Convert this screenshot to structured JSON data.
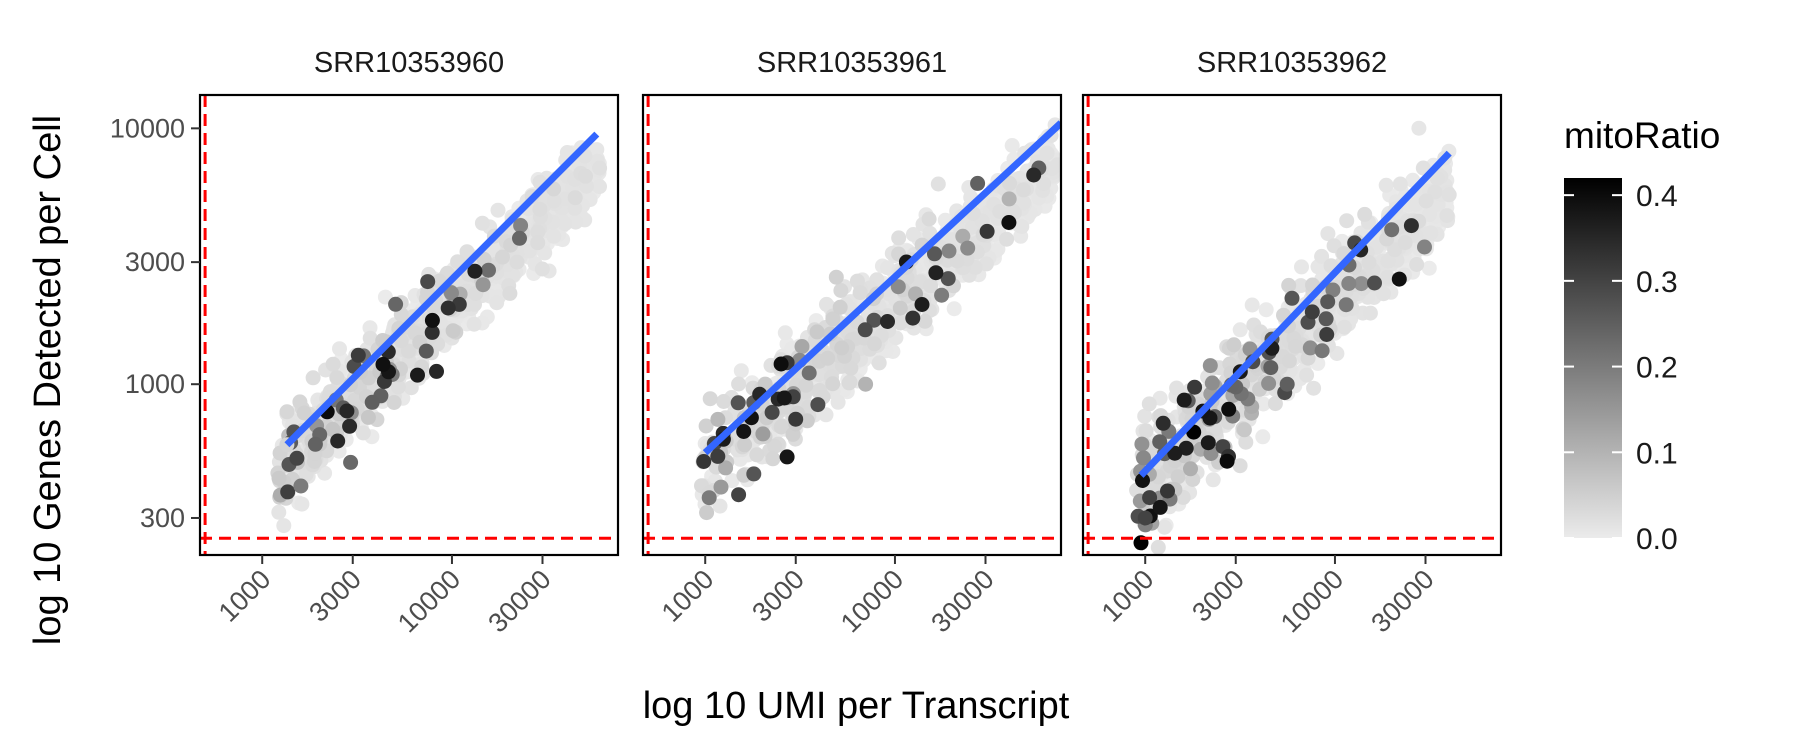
{
  "chart_data": {
    "type": "scatter",
    "facet_by": "sample",
    "xlabel": "log 10 UMI per Transcript",
    "ylabel": "log 10 Genes Detected per Cell",
    "x_scale": "log10",
    "y_scale": "log10",
    "xlim": [
      470,
      75000
    ],
    "ylim": [
      215,
      13500
    ],
    "x_ticks": [
      1000,
      3000,
      10000,
      30000
    ],
    "x_tick_labels": [
      "1000",
      "3000",
      "10000",
      "30000"
    ],
    "y_ticks": [
      300,
      1000,
      3000,
      10000
    ],
    "y_tick_labels": [
      "300",
      "1000",
      "3000",
      "10000"
    ],
    "threshold_lines": {
      "x": 500,
      "y": 250,
      "color": "#ff0000",
      "style": "dashed"
    },
    "trend_color": "#3366ff",
    "color_scale": {
      "title": "mitoRatio",
      "low_color": "#ebebeb",
      "high_color": "#000000",
      "range": [
        0,
        0.42
      ],
      "ticks": [
        0.0,
        0.1,
        0.2,
        0.3,
        0.4
      ],
      "tick_labels": [
        "0.0",
        "0.1",
        "0.2",
        "0.3",
        "0.4"
      ]
    },
    "panels": [
      {
        "title": "SRR10353960",
        "trend": {
          "x": [
            1350,
            58000
          ],
          "y": [
            580,
            9500
          ]
        },
        "cloud": {
          "umi_range": [
            1200,
            60000
          ],
          "center_start": 470,
          "center_end": 7000,
          "spread": 0.1,
          "dark_fraction": 0.12
        },
        "points": [
          {
            "x": 1300,
            "y": 280,
            "mito": 0.01
          },
          {
            "x": 1350,
            "y": 580,
            "mito": 0.04
          },
          {
            "x": 1600,
            "y": 400,
            "mito": 0.2
          },
          {
            "x": 2500,
            "y": 600,
            "mito": 0.35
          },
          {
            "x": 2200,
            "y": 780,
            "mito": 0.4
          },
          {
            "x": 3800,
            "y": 850,
            "mito": 0.25
          },
          {
            "x": 60000,
            "y": 7000,
            "mito": 0.02
          }
        ]
      },
      {
        "title": "SRR10353961",
        "trend": {
          "x": [
            1000,
            75000
          ],
          "y": [
            540,
            10500
          ]
        },
        "cloud": {
          "umi_range": [
            950,
            70000
          ],
          "center_start": 450,
          "center_end": 7300,
          "spread": 0.11,
          "dark_fraction": 0.1
        },
        "points": [
          {
            "x": 1050,
            "y": 360,
            "mito": 0.2
          },
          {
            "x": 1500,
            "y": 370,
            "mito": 0.3
          },
          {
            "x": 2700,
            "y": 520,
            "mito": 0.38
          },
          {
            "x": 3000,
            "y": 730,
            "mito": 0.32
          },
          {
            "x": 7000,
            "y": 1000,
            "mito": 0.1
          },
          {
            "x": 40000,
            "y": 5300,
            "mito": 0.1
          },
          {
            "x": 72000,
            "y": 7200,
            "mito": 0.02
          }
        ]
      },
      {
        "title": "SRR10353962",
        "trend": {
          "x": [
            950,
            40000
          ],
          "y": [
            440,
            8000
          ]
        },
        "cloud": {
          "umi_range": [
            900,
            40000
          ],
          "center_start": 380,
          "center_end": 5800,
          "spread": 0.12,
          "dark_fraction": 0.18
        },
        "points": [
          {
            "x": 950,
            "y": 240,
            "mito": 0.42
          },
          {
            "x": 1000,
            "y": 300,
            "mito": 0.3
          },
          {
            "x": 1200,
            "y": 330,
            "mito": 0.38
          },
          {
            "x": 1800,
            "y": 650,
            "mito": 0.42
          },
          {
            "x": 2700,
            "y": 500,
            "mito": 0.4
          },
          {
            "x": 5600,
            "y": 1000,
            "mito": 0.25
          },
          {
            "x": 40000,
            "y": 5500,
            "mito": 0.02
          }
        ]
      }
    ]
  }
}
